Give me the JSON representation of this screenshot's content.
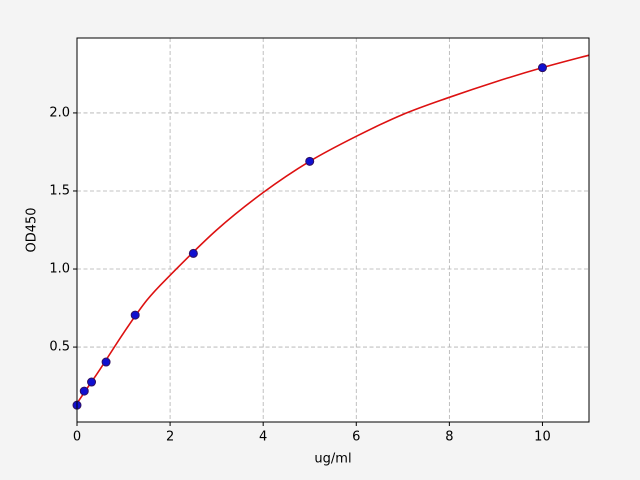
{
  "chart_data": {
    "type": "scatter",
    "xlabel": "ug/ml",
    "ylabel": "OD450",
    "xlim": [
      0,
      11
    ],
    "ylim": [
      0.02,
      2.48
    ],
    "xticks": [
      0,
      2,
      4,
      6,
      8,
      10
    ],
    "yticks": [
      0.5,
      {
        "value": 1.0,
        "label": "1.0"
      },
      1.5,
      {
        "value": 2.0,
        "label": "2.0"
      }
    ],
    "grid": true,
    "series": [
      {
        "kind": "line",
        "color": "#dd1111",
        "x": [
          0,
          0.25,
          0.5,
          1,
          1.5,
          2,
          3,
          4,
          5,
          6,
          7,
          8,
          9,
          10,
          11
        ],
        "values": [
          0.14,
          0.25,
          0.36,
          0.59,
          0.8,
          0.96,
          1.25,
          1.49,
          1.69,
          1.85,
          1.99,
          2.1,
          2.2,
          2.29,
          2.37
        ]
      },
      {
        "kind": "points",
        "color": "#1010d0",
        "x": [
          0,
          0.156,
          0.3125,
          0.625,
          1.25,
          2.5,
          5,
          10
        ],
        "values": [
          0.128,
          0.218,
          0.276,
          0.404,
          0.705,
          1.1,
          1.69,
          2.29
        ]
      }
    ]
  }
}
